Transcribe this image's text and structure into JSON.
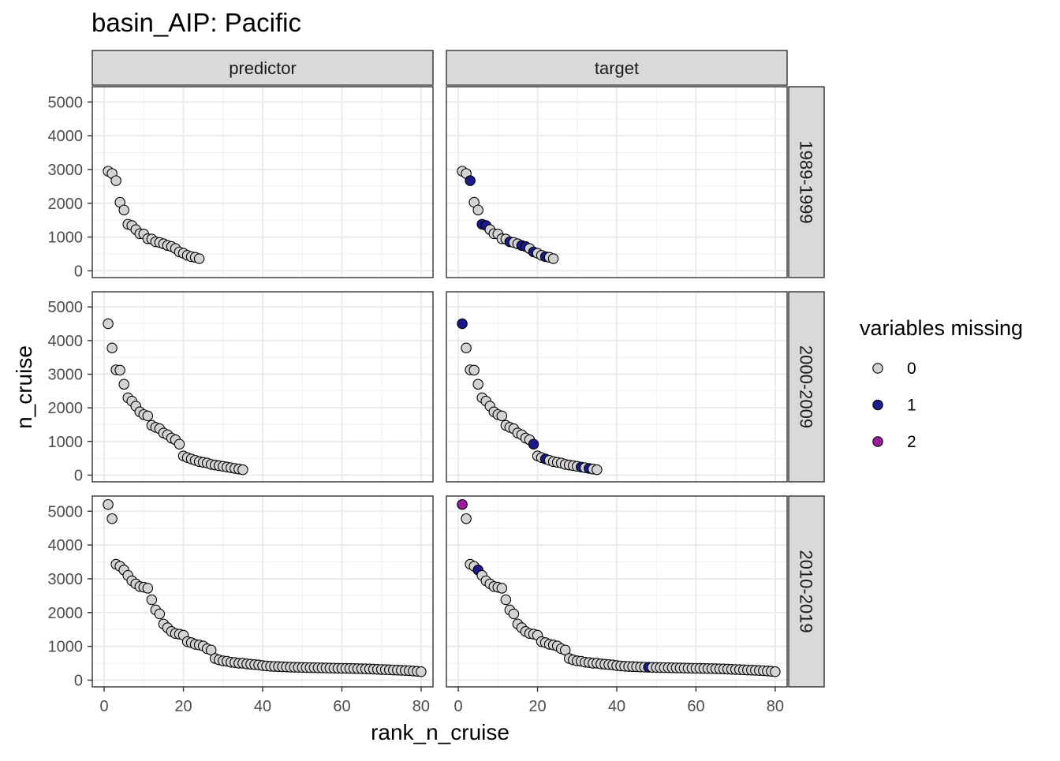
{
  "chart_data": {
    "type": "scatter",
    "title": "basin_AIP: Pacific",
    "xlabel": "rank_n_cruise",
    "ylabel": "n_cruise",
    "xlim": [
      -3,
      83
    ],
    "ylim": [
      -200,
      5450
    ],
    "x_ticks": [
      0,
      20,
      40,
      60,
      80
    ],
    "y_ticks": [
      0,
      1000,
      2000,
      3000,
      4000,
      5000
    ],
    "grid": true,
    "facet_cols": [
      "predictor",
      "target"
    ],
    "facet_rows": [
      "1989-1999",
      "2000-2009",
      "2010-2019"
    ],
    "legend": {
      "title": "variables missing",
      "position": "right",
      "entries": [
        {
          "label": "0",
          "color": "#D3D3D3"
        },
        {
          "label": "1",
          "color": "#1A1A8C"
        },
        {
          "label": "2",
          "color": "#9A1E9A"
        }
      ]
    },
    "series_by_row": [
      {
        "period": "1989-1999",
        "n_cruise": [
          2950,
          2880,
          2670,
          2030,
          1800,
          1380,
          1340,
          1220,
          1100,
          1090,
          950,
          940,
          860,
          840,
          800,
          750,
          720,
          660,
          560,
          520,
          460,
          420,
          400,
          360
        ],
        "missing_predictor": {},
        "missing_target": {
          "3": 1,
          "6": 1,
          "7": 1,
          "13": 1,
          "16": 1,
          "17": 1,
          "19": 1,
          "22": 1
        }
      },
      {
        "period": "2000-2009",
        "n_cruise": [
          4500,
          3780,
          3130,
          3120,
          2700,
          2300,
          2200,
          2050,
          1880,
          1800,
          1760,
          1480,
          1420,
          1380,
          1250,
          1200,
          1100,
          1050,
          920,
          570,
          520,
          480,
          440,
          400,
          380,
          360,
          320,
          300,
          280,
          260,
          240,
          220,
          200,
          180,
          160
        ],
        "missing_predictor": {},
        "missing_target": {
          "1": 1,
          "19": 1,
          "22": 1,
          "31": 1,
          "33": 1
        }
      },
      {
        "period": "2010-2019",
        "n_cruise": [
          5200,
          4780,
          3430,
          3370,
          3260,
          3100,
          2940,
          2850,
          2770,
          2750,
          2720,
          2380,
          2080,
          1960,
          1660,
          1550,
          1440,
          1380,
          1360,
          1330,
          1140,
          1110,
          1060,
          1040,
          1010,
          930,
          890,
          640,
          600,
          570,
          560,
          530,
          520,
          500,
          500,
          480,
          470,
          460,
          450,
          430,
          420,
          410,
          405,
          400,
          395,
          390,
          385,
          380,
          378,
          375,
          372,
          370,
          368,
          365,
          362,
          360,
          358,
          355,
          352,
          350,
          348,
          345,
          342,
          340,
          337,
          334,
          330,
          325,
          320,
          315,
          310,
          305,
          300,
          295,
          290,
          285,
          280,
          270,
          260,
          250
        ],
        "missing_predictor": {},
        "missing_target": {
          "1": 2,
          "5": 1,
          "48": 1
        }
      }
    ]
  }
}
